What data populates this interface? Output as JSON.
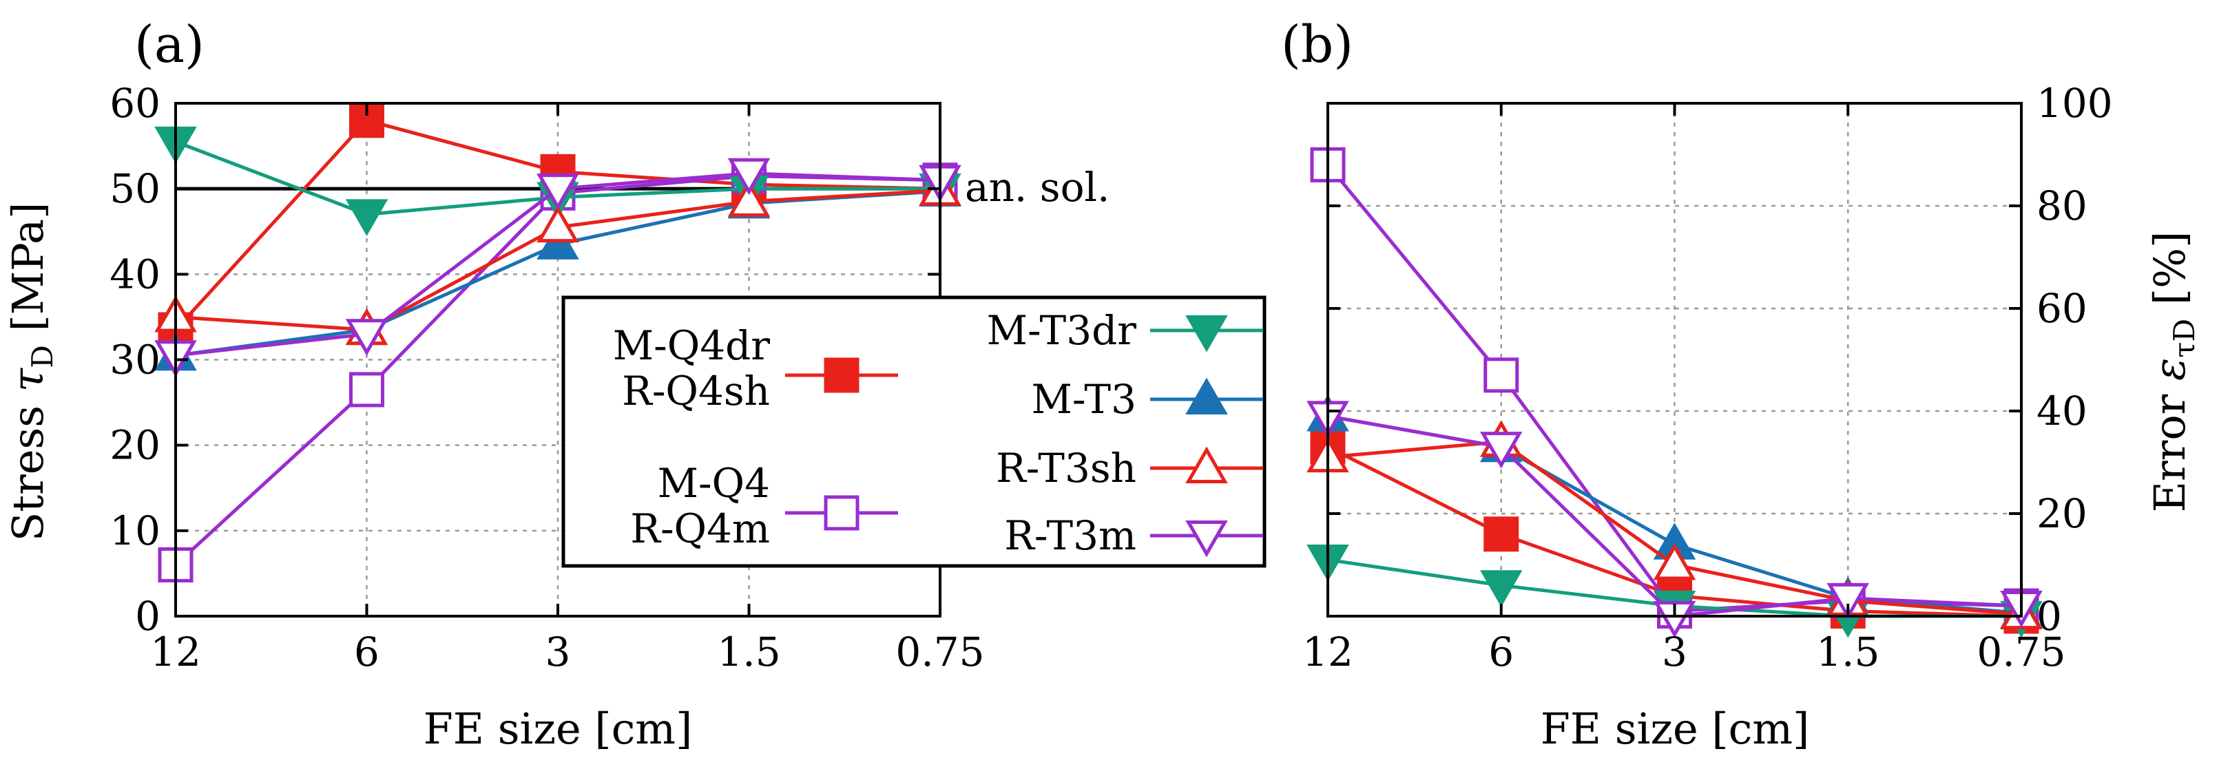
{
  "chart_data": [
    {
      "type": "line",
      "panel_label": "(a)",
      "xlabel": "FE size [cm]",
      "ylabel_main": "Stress",
      "ylabel_symbol": "τ",
      "ylabel_subscript": "D",
      "ylabel_unit": "[MPa]",
      "categories": [
        "12",
        "6",
        "3",
        "1.5",
        "0.75"
      ],
      "ylim": [
        0,
        60
      ],
      "yticks": [
        0,
        10,
        20,
        30,
        40,
        50,
        60
      ],
      "grid": true,
      "reference_line": {
        "value": 50,
        "label": "an. sol."
      },
      "legend": {
        "placement": "center-right",
        "groups": [
          {
            "lines": [
              "M-Q4dr",
              "R-Q4sh"
            ],
            "series": "M-Q4dr"
          },
          {
            "lines": [
              "M-Q4",
              "R-Q4m"
            ],
            "series": "M-Q4"
          },
          {
            "lines": [
              "M-T3dr"
            ],
            "series": "M-T3dr"
          },
          {
            "lines": [
              "M-T3"
            ],
            "series": "M-T3"
          },
          {
            "lines": [
              "R-T3sh"
            ],
            "series": "R-T3sh"
          },
          {
            "lines": [
              "R-T3m"
            ],
            "series": "R-T3m"
          }
        ]
      },
      "series": [
        {
          "name": "M-Q4dr",
          "color": "#e8221b",
          "marker": "square-filled",
          "values": [
            33.5,
            58,
            52,
            50.5,
            50
          ]
        },
        {
          "name": "M-Q4",
          "color": "#9b2ccf",
          "marker": "square-open",
          "values": [
            6,
            26.5,
            49.5,
            51.5,
            51
          ]
        },
        {
          "name": "M-T3dr",
          "color": "#139e7c",
          "marker": "tri-down-filled",
          "values": [
            55.5,
            47,
            49,
            50,
            50
          ]
        },
        {
          "name": "M-T3",
          "color": "#1a72b5",
          "marker": "tri-up-filled",
          "values": [
            30.5,
            33.5,
            43.5,
            48.3,
            49.7
          ]
        },
        {
          "name": "R-T3sh",
          "color": "#e8221b",
          "marker": "tri-up-open",
          "values": [
            35,
            33.5,
            45.5,
            48.5,
            49.8
          ]
        },
        {
          "name": "R-T3m",
          "color": "#9b2ccf",
          "marker": "tri-down-open",
          "values": [
            30.5,
            33,
            50,
            51.8,
            51
          ]
        }
      ]
    },
    {
      "type": "line",
      "panel_label": "(b)",
      "xlabel": "FE size [cm]",
      "ylabel_main": "Error",
      "ylabel_symbol": "ε",
      "ylabel_subscript": "τD",
      "ylabel_unit": "[%]",
      "categories": [
        "12",
        "6",
        "3",
        "1.5",
        "0.75"
      ],
      "ylim": [
        0,
        100
      ],
      "yticks": [
        0,
        20,
        40,
        60,
        80,
        100
      ],
      "grid": true,
      "series": [
        {
          "name": "M-Q4dr",
          "color": "#e8221b",
          "marker": "square-filled",
          "values": [
            33,
            16,
            4,
            1,
            0
          ]
        },
        {
          "name": "M-Q4",
          "color": "#9b2ccf",
          "marker": "square-open",
          "values": [
            88,
            47,
            1,
            3,
            2
          ]
        },
        {
          "name": "M-T3dr",
          "color": "#139e7c",
          "marker": "tri-down-filled",
          "values": [
            11,
            6,
            2,
            0,
            0
          ]
        },
        {
          "name": "M-T3",
          "color": "#1a72b5",
          "marker": "tri-up-filled",
          "values": [
            39,
            33,
            14,
            3.5,
            0.6
          ]
        },
        {
          "name": "R-T3sh",
          "color": "#e8221b",
          "marker": "tri-up-open",
          "values": [
            31,
            34,
            10,
            3,
            0.4
          ]
        },
        {
          "name": "R-T3m",
          "color": "#9b2ccf",
          "marker": "tri-down-open",
          "values": [
            39,
            33,
            0,
            3.5,
            2
          ]
        }
      ]
    }
  ]
}
